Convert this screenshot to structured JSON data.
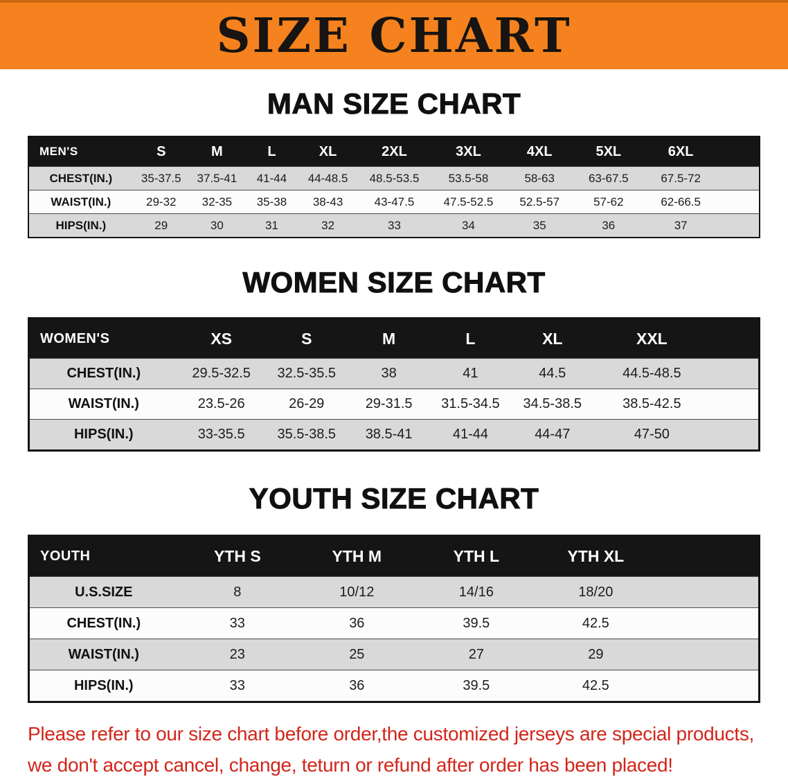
{
  "banner": {
    "title": "SIZE CHART"
  },
  "colors": {
    "banner_bg": "#F5821E",
    "table_header_bg": "#151515",
    "row_gray": "#D9D9D9",
    "row_white": "#FCFCFC",
    "footer_text": "#D2251A"
  },
  "chart_data": [
    {
      "type": "table",
      "title": "MAN SIZE CHART",
      "corner_label": "MEN'S",
      "columns": [
        "S",
        "M",
        "L",
        "XL",
        "2XL",
        "3XL",
        "4XL",
        "5XL",
        "6XL"
      ],
      "rows": [
        {
          "label": "CHEST(IN.)",
          "values": [
            "35-37.5",
            "37.5-41",
            "41-44",
            "44-48.5",
            "48.5-53.5",
            "53.5-58",
            "58-63",
            "63-67.5",
            "67.5-72"
          ]
        },
        {
          "label": "WAIST(IN.)",
          "values": [
            "29-32",
            "32-35",
            "35-38",
            "38-43",
            "43-47.5",
            "47.5-52.5",
            "52.5-57",
            "57-62",
            "62-66.5"
          ]
        },
        {
          "label": "HIPS(IN.)",
          "values": [
            "29",
            "30",
            "31",
            "32",
            "33",
            "34",
            "35",
            "36",
            "37"
          ]
        }
      ]
    },
    {
      "type": "table",
      "title": "WOMEN SIZE CHART",
      "corner_label": "WOMEN'S",
      "columns": [
        "XS",
        "S",
        "M",
        "L",
        "XL",
        "XXL"
      ],
      "rows": [
        {
          "label": "CHEST(IN.)",
          "values": [
            "29.5-32.5",
            "32.5-35.5",
            "38",
            "41",
            "44.5",
            "44.5-48.5"
          ]
        },
        {
          "label": "WAIST(IN.)",
          "values": [
            "23.5-26",
            "26-29",
            "29-31.5",
            "31.5-34.5",
            "34.5-38.5",
            "38.5-42.5"
          ]
        },
        {
          "label": "HIPS(IN.)",
          "values": [
            "33-35.5",
            "35.5-38.5",
            "38.5-41",
            "41-44",
            "44-47",
            "47-50"
          ]
        }
      ]
    },
    {
      "type": "table",
      "title": "YOUTH SIZE CHART",
      "corner_label": "YOUTH",
      "columns": [
        "YTH S",
        "YTH M",
        "YTH L",
        "YTH XL"
      ],
      "rows": [
        {
          "label": "U.S.SIZE",
          "values": [
            "8",
            "10/12",
            "14/16",
            "18/20"
          ]
        },
        {
          "label": "CHEST(IN.)",
          "values": [
            "33",
            "36",
            "39.5",
            "42.5"
          ]
        },
        {
          "label": "WAIST(IN.)",
          "values": [
            "23",
            "25",
            "27",
            "29"
          ]
        },
        {
          "label": "HIPS(IN.)",
          "values": [
            "33",
            "36",
            "39.5",
            "42.5"
          ]
        }
      ]
    }
  ],
  "footer": {
    "line1": "Please refer to our size chart before order,the customized jerseys are special products,",
    "line2": "we don't accept cancel, change, teturn or refund after order has been placed!"
  }
}
